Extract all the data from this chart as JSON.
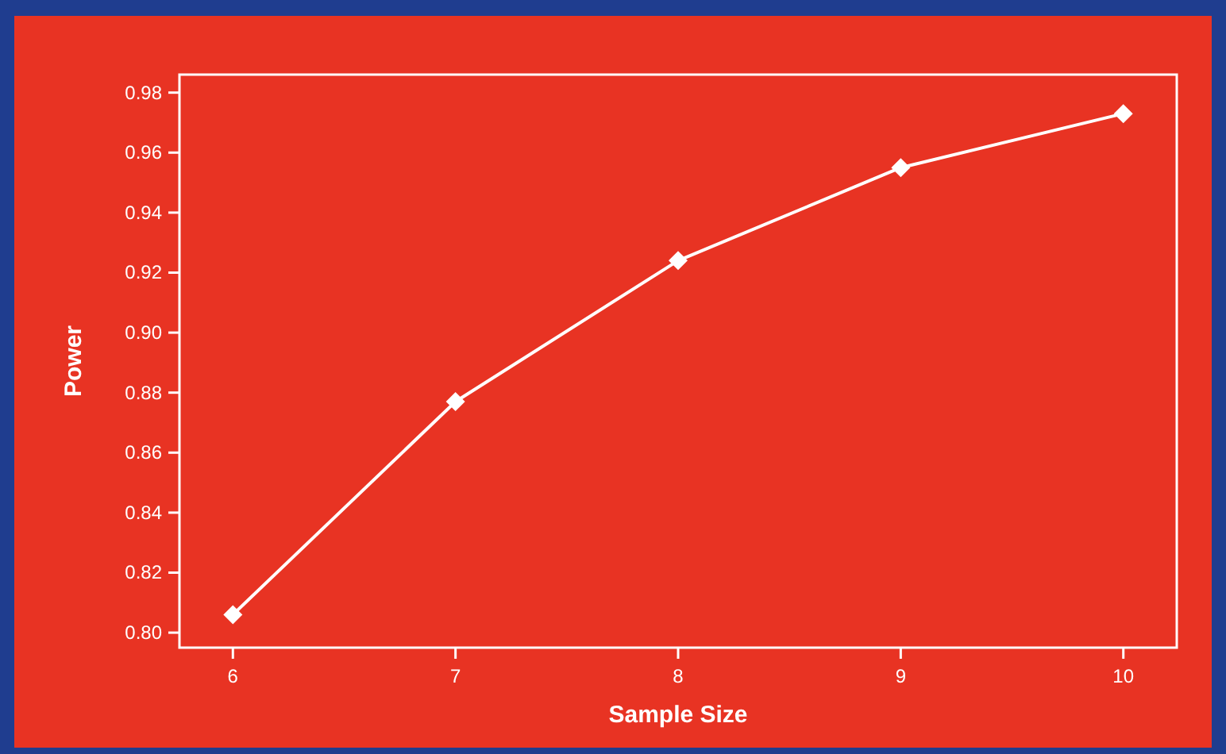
{
  "chart_data": {
    "type": "line",
    "xlabel": "Sample Size",
    "ylabel": "Power",
    "x": [
      6,
      7,
      8,
      9,
      10
    ],
    "series": [
      {
        "color": "#ffffff",
        "values": [
          0.806,
          0.877,
          0.924,
          0.955,
          0.973
        ]
      }
    ],
    "xlim": [
      5.76,
      10.24
    ],
    "xticks": [
      6,
      7,
      8,
      9,
      10
    ],
    "ylim": [
      0.795,
      0.986
    ],
    "yticks": [
      {
        "value": 0.8,
        "label": "0.80"
      },
      {
        "value": 0.82,
        "label": "0.82"
      },
      {
        "value": 0.84,
        "label": "0.84"
      },
      {
        "value": 0.86,
        "label": "0.86"
      },
      {
        "value": 0.88,
        "label": "0.88"
      },
      {
        "value": 0.9,
        "label": "0.90"
      },
      {
        "value": 0.92,
        "label": "0.92"
      },
      {
        "value": 0.94,
        "label": "0.94"
      },
      {
        "value": 0.96,
        "label": "0.96"
      },
      {
        "value": 0.98,
        "label": "0.98"
      }
    ],
    "marker": "diamond",
    "line_style": "solid",
    "grid": false
  }
}
